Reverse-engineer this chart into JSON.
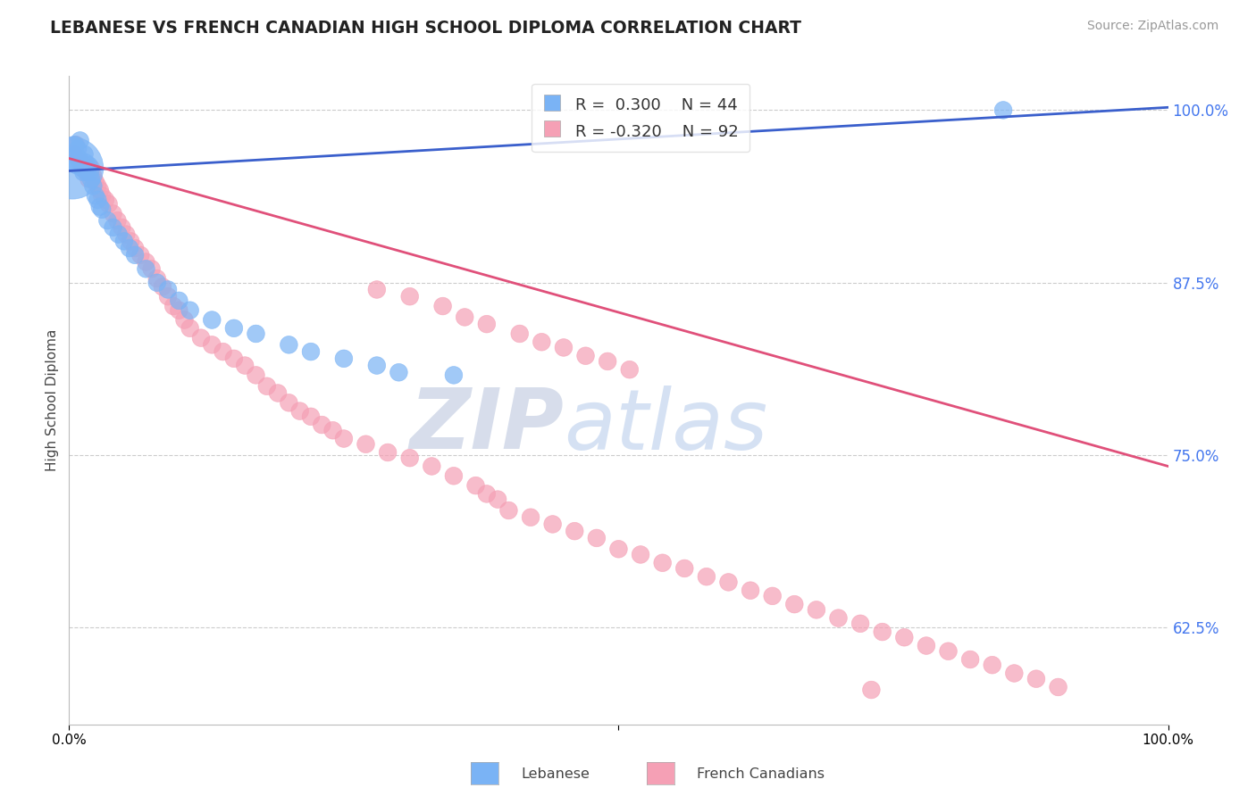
{
  "title": "LEBANESE VS FRENCH CANADIAN HIGH SCHOOL DIPLOMA CORRELATION CHART",
  "source": "Source: ZipAtlas.com",
  "ylabel": "High School Diploma",
  "xlim": [
    0.0,
    1.0
  ],
  "ylim": [
    0.555,
    1.025
  ],
  "legend_R_blue": "0.300",
  "legend_N_blue": "44",
  "legend_R_pink": "-0.320",
  "legend_N_pink": "92",
  "blue_color": "#7ab3f5",
  "pink_color": "#f5a0b5",
  "blue_line_color": "#3a5fcc",
  "pink_line_color": "#e0507a",
  "watermark_zip": "ZIP",
  "watermark_atlas": "atlas",
  "background_color": "#ffffff",
  "lebanese_x": [
    0.005,
    0.006,
    0.007,
    0.008,
    0.009,
    0.01,
    0.011,
    0.012,
    0.013,
    0.014,
    0.015,
    0.016,
    0.017,
    0.018,
    0.019,
    0.02,
    0.022,
    0.024,
    0.026,
    0.028,
    0.03,
    0.035,
    0.04,
    0.045,
    0.05,
    0.055,
    0.06,
    0.07,
    0.08,
    0.09,
    0.1,
    0.11,
    0.13,
    0.15,
    0.17,
    0.2,
    0.22,
    0.25,
    0.28,
    0.3,
    0.35,
    0.004,
    0.85,
    0.003
  ],
  "lebanese_y": [
    0.975,
    0.968,
    0.96,
    0.972,
    0.965,
    0.978,
    0.962,
    0.958,
    0.955,
    0.968,
    0.962,
    0.955,
    0.958,
    0.96,
    0.955,
    0.95,
    0.945,
    0.938,
    0.935,
    0.93,
    0.928,
    0.92,
    0.915,
    0.91,
    0.905,
    0.9,
    0.895,
    0.885,
    0.875,
    0.87,
    0.862,
    0.855,
    0.848,
    0.842,
    0.838,
    0.83,
    0.825,
    0.82,
    0.815,
    0.81,
    0.808,
    0.962,
    1.0,
    0.958
  ],
  "lebanese_sizes": [
    200,
    200,
    200,
    200,
    200,
    200,
    200,
    200,
    200,
    200,
    200,
    200,
    200,
    200,
    200,
    200,
    200,
    200,
    200,
    200,
    200,
    200,
    200,
    200,
    200,
    200,
    200,
    200,
    200,
    200,
    200,
    200,
    200,
    200,
    200,
    200,
    200,
    200,
    200,
    200,
    200,
    200,
    200,
    2500
  ],
  "french_x": [
    0.004,
    0.006,
    0.008,
    0.01,
    0.012,
    0.014,
    0.016,
    0.018,
    0.02,
    0.022,
    0.024,
    0.026,
    0.028,
    0.03,
    0.033,
    0.036,
    0.04,
    0.044,
    0.048,
    0.052,
    0.056,
    0.06,
    0.065,
    0.07,
    0.075,
    0.08,
    0.085,
    0.09,
    0.095,
    0.1,
    0.105,
    0.11,
    0.12,
    0.13,
    0.14,
    0.15,
    0.16,
    0.17,
    0.18,
    0.19,
    0.2,
    0.21,
    0.22,
    0.23,
    0.24,
    0.25,
    0.27,
    0.29,
    0.31,
    0.33,
    0.35,
    0.37,
    0.38,
    0.39,
    0.4,
    0.42,
    0.44,
    0.46,
    0.48,
    0.5,
    0.52,
    0.54,
    0.56,
    0.58,
    0.6,
    0.62,
    0.64,
    0.66,
    0.68,
    0.7,
    0.72,
    0.74,
    0.76,
    0.78,
    0.8,
    0.82,
    0.84,
    0.86,
    0.88,
    0.9,
    0.28,
    0.31,
    0.34,
    0.36,
    0.38,
    0.41,
    0.43,
    0.45,
    0.47,
    0.49,
    0.51,
    0.73
  ],
  "french_y": [
    0.968,
    0.975,
    0.965,
    0.962,
    0.958,
    0.96,
    0.955,
    0.95,
    0.958,
    0.952,
    0.948,
    0.945,
    0.942,
    0.938,
    0.935,
    0.932,
    0.925,
    0.92,
    0.915,
    0.91,
    0.905,
    0.9,
    0.895,
    0.89,
    0.885,
    0.878,
    0.872,
    0.865,
    0.858,
    0.855,
    0.848,
    0.842,
    0.835,
    0.83,
    0.825,
    0.82,
    0.815,
    0.808,
    0.8,
    0.795,
    0.788,
    0.782,
    0.778,
    0.772,
    0.768,
    0.762,
    0.758,
    0.752,
    0.748,
    0.742,
    0.735,
    0.728,
    0.722,
    0.718,
    0.71,
    0.705,
    0.7,
    0.695,
    0.69,
    0.682,
    0.678,
    0.672,
    0.668,
    0.662,
    0.658,
    0.652,
    0.648,
    0.642,
    0.638,
    0.632,
    0.628,
    0.622,
    0.618,
    0.612,
    0.608,
    0.602,
    0.598,
    0.592,
    0.588,
    0.582,
    0.87,
    0.865,
    0.858,
    0.85,
    0.845,
    0.838,
    0.832,
    0.828,
    0.822,
    0.818,
    0.812,
    0.58
  ],
  "french_sizes": [
    200,
    200,
    200,
    200,
    200,
    200,
    200,
    200,
    200,
    200,
    200,
    200,
    200,
    200,
    200,
    200,
    200,
    200,
    200,
    200,
    200,
    200,
    200,
    200,
    200,
    200,
    200,
    200,
    200,
    200,
    200,
    200,
    200,
    200,
    200,
    200,
    200,
    200,
    200,
    200,
    200,
    200,
    200,
    200,
    200,
    200,
    200,
    200,
    200,
    200,
    200,
    200,
    200,
    200,
    200,
    200,
    200,
    200,
    200,
    200,
    200,
    200,
    200,
    200,
    200,
    200,
    200,
    200,
    200,
    200,
    200,
    200,
    200,
    200,
    200,
    200,
    200,
    200,
    200,
    200,
    200,
    200,
    200,
    200,
    200,
    200,
    200,
    200,
    200,
    200,
    200,
    200
  ],
  "blue_trendline": [
    [
      0.0,
      0.956
    ],
    [
      1.0,
      1.002
    ]
  ],
  "pink_trendline": [
    [
      0.0,
      0.965
    ],
    [
      1.0,
      0.742
    ]
  ]
}
